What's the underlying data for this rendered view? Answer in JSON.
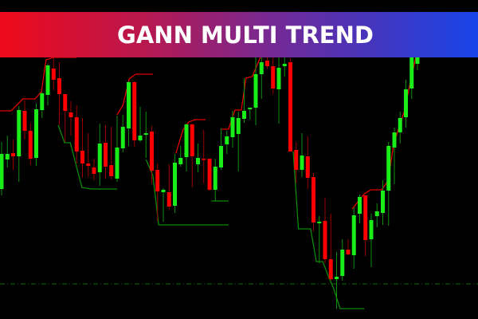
{
  "banner": {
    "title": "GANN MULTI TREND"
  },
  "colors": {
    "background": "#000000",
    "bull": "#19ee19",
    "bear": "#ff0000",
    "upper_line": "#e00000",
    "lower_line": "#0b8a0b",
    "reference_line": "#0a6a0a"
  },
  "chart_data": {
    "type": "candlestick",
    "title": "",
    "ylim": [
      0,
      400
    ],
    "grid": false,
    "candles_ohlc": [
      [
        163,
        222,
        155,
        207
      ],
      [
        200,
        230,
        190,
        207
      ],
      [
        208,
        225,
        187,
        204
      ],
      [
        204,
        267,
        172,
        262
      ],
      [
        261,
        274,
        225,
        236
      ],
      [
        236,
        245,
        193,
        201
      ],
      [
        202,
        270,
        192,
        263
      ],
      [
        262,
        285,
        252,
        283
      ],
      [
        281,
        320,
        268,
        318
      ],
      [
        314,
        327,
        287,
        300
      ],
      [
        302,
        322,
        243,
        282
      ],
      [
        282,
        282,
        222,
        261
      ],
      [
        259,
        273,
        230,
        253
      ],
      [
        253,
        268,
        195,
        210
      ],
      [
        211,
        252,
        177,
        195
      ],
      [
        195,
        233,
        178,
        192
      ],
      [
        190,
        201,
        174,
        182
      ],
      [
        184,
        245,
        167,
        220
      ],
      [
        221,
        243,
        176,
        191
      ],
      [
        193,
        241,
        175,
        179
      ],
      [
        176,
        255,
        172,
        215
      ],
      [
        214,
        256,
        209,
        241
      ],
      [
        239,
        298,
        217,
        297
      ],
      [
        297,
        298,
        216,
        224
      ],
      [
        224,
        266,
        222,
        230
      ],
      [
        231,
        260,
        202,
        233
      ],
      [
        235,
        242,
        170,
        186
      ],
      [
        187,
        195,
        123,
        160
      ],
      [
        159,
        164,
        122,
        162
      ],
      [
        159,
        194,
        138,
        141
      ],
      [
        142,
        207,
        133,
        196
      ],
      [
        194,
        217,
        191,
        202
      ],
      [
        203,
        245,
        185,
        244
      ],
      [
        244,
        245,
        165,
        204
      ],
      [
        194,
        220,
        184,
        202
      ],
      [
        201,
        237,
        170,
        200
      ],
      [
        201,
        201,
        161,
        162
      ],
      [
        162,
        201,
        148,
        191
      ],
      [
        190,
        239,
        187,
        217
      ],
      [
        219,
        236,
        207,
        229
      ],
      [
        228,
        261,
        215,
        253
      ],
      [
        232,
        260,
        185,
        252
      ],
      [
        251,
        302,
        246,
        261
      ],
      [
        263,
        265,
        250,
        265
      ],
      [
        265,
        328,
        243,
        307
      ],
      [
        307,
        328,
        276,
        322
      ],
      [
        324,
        328,
        314,
        317
      ],
      [
        317,
        328,
        282,
        289
      ],
      [
        288,
        328,
        245,
        315
      ],
      [
        317,
        328,
        304,
        320
      ],
      [
        322,
        327,
        210,
        210
      ],
      [
        212,
        222,
        170,
        187
      ],
      [
        187,
        233,
        178,
        205
      ],
      [
        204,
        229,
        163,
        177
      ],
      [
        178,
        183,
        110,
        121
      ],
      [
        120,
        129,
        70,
        122
      ],
      [
        123,
        152,
        70,
        75
      ],
      [
        75,
        132,
        48,
        50
      ],
      [
        50,
        84,
        13,
        53
      ],
      [
        54,
        100,
        48,
        87
      ],
      [
        87,
        100,
        80,
        81
      ],
      [
        80,
        140,
        63,
        130
      ],
      [
        132,
        156,
        120,
        153
      ],
      [
        155,
        155,
        79,
        99
      ],
      [
        100,
        132,
        65,
        124
      ],
      [
        129,
        145,
        115,
        135
      ],
      [
        133,
        174,
        118,
        161
      ],
      [
        161,
        222,
        117,
        217
      ],
      [
        215,
        240,
        169,
        234
      ],
      [
        234,
        260,
        220,
        252
      ],
      [
        253,
        300,
        240,
        288
      ],
      [
        289,
        328,
        276,
        328
      ],
      [
        320,
        328,
        312,
        328
      ]
    ],
    "upper_trend_segments": [
      [
        [
          -0.3,
          261
        ],
        [
          1.66,
          261
        ],
        [
          2.6,
          268
        ],
        [
          3.7,
          276
        ],
        [
          5.8,
          276
        ],
        [
          6.9,
          285
        ],
        [
          7.7,
          325
        ],
        [
          9.0,
          328
        ],
        [
          13.0,
          328
        ]
      ],
      [
        [
          20.0,
          256
        ],
        [
          21.0,
          268
        ],
        [
          22.1,
          301
        ],
        [
          23.2,
          307
        ],
        [
          26.2,
          307
        ]
      ],
      [
        [
          30.2,
          208
        ],
        [
          31.4,
          237
        ],
        [
          32.4,
          247
        ],
        [
          33.5,
          250
        ],
        [
          35.3,
          250
        ]
      ],
      [
        [
          38.1,
          238
        ],
        [
          39.3,
          238
        ],
        [
          40.4,
          262
        ],
        [
          41.5,
          262
        ],
        [
          42.3,
          302
        ],
        [
          43.4,
          304
        ],
        [
          44.8,
          328
        ]
      ],
      [
        [
          60.7,
          138
        ],
        [
          62.8,
          157
        ],
        [
          63.9,
          162
        ],
        [
          65.8,
          162
        ],
        [
          66.9,
          173
        ],
        [
          67.9,
          220
        ],
        [
          69.7,
          260
        ],
        [
          71.7,
          328
        ]
      ]
    ],
    "lower_trend_segments": [
      [
        [
          9.8,
          243
        ],
        [
          10.9,
          221
        ],
        [
          11.9,
          221
        ],
        [
          13.9,
          165
        ],
        [
          15.6,
          163
        ],
        [
          20.0,
          163
        ]
      ],
      [
        [
          25.0,
          200
        ],
        [
          26.2,
          180
        ],
        [
          27.2,
          118
        ],
        [
          39.3,
          118
        ]
      ],
      [
        [
          36.3,
          148
        ],
        [
          39.3,
          148
        ]
      ],
      [
        [
          50.5,
          210
        ],
        [
          51.4,
          113
        ],
        [
          53.5,
          113
        ],
        [
          54.5,
          72
        ],
        [
          55.6,
          72
        ],
        [
          56.6,
          53
        ],
        [
          57.5,
          38
        ],
        [
          58.6,
          13
        ],
        [
          62.8,
          13
        ]
      ]
    ],
    "reference_level": 44
  }
}
